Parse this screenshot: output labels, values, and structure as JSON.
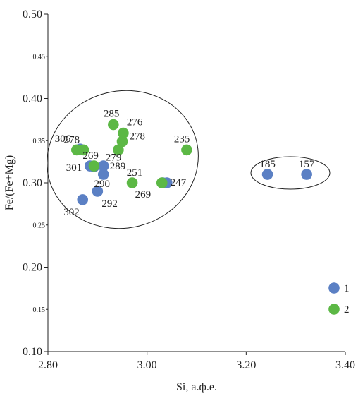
{
  "chart_data": {
    "type": "scatter",
    "xlabel": "Si, а.ф.е.",
    "ylabel": "Fe/(Fe+Mg)",
    "xlim": [
      2.8,
      3.4
    ],
    "ylim": [
      0.1,
      0.5
    ],
    "x_ticks": [
      "2.80",
      "3.00",
      "3.20",
      "3.40"
    ],
    "y_major_ticks": [
      "0.10",
      "0.20",
      "0.30",
      "0.40",
      "0.50"
    ],
    "y_minor_ticks": [
      "0.15",
      "0.25",
      "0.35",
      "0.45"
    ],
    "grid": false,
    "legend_position": "bottom-right",
    "series": [
      {
        "name": "1",
        "color": "#5b80c4",
        "points": [
          {
            "x": 2.865,
            "y": 0.34,
            "label": "306"
          },
          {
            "x": 2.885,
            "y": 0.32,
            "label": "301"
          },
          {
            "x": 2.893,
            "y": 0.319,
            "label": ""
          },
          {
            "x": 2.912,
            "y": 0.32,
            "label": "289"
          },
          {
            "x": 2.912,
            "y": 0.31,
            "label": "290"
          },
          {
            "x": 2.9,
            "y": 0.29,
            "label": "292"
          },
          {
            "x": 2.87,
            "y": 0.28,
            "label": "302"
          },
          {
            "x": 3.032,
            "y": 0.3,
            "label": ""
          },
          {
            "x": 3.04,
            "y": 0.3,
            "label": "247"
          },
          {
            "x": 3.243,
            "y": 0.31,
            "label": "185"
          },
          {
            "x": 3.322,
            "y": 0.31,
            "label": "157"
          }
        ]
      },
      {
        "name": "2",
        "color": "#5cb845",
        "points": [
          {
            "x": 2.858,
            "y": 0.339,
            "label": ""
          },
          {
            "x": 2.872,
            "y": 0.339,
            "label": "278"
          },
          {
            "x": 2.932,
            "y": 0.369,
            "label": "285"
          },
          {
            "x": 2.952,
            "y": 0.359,
            "label": "276"
          },
          {
            "x": 2.95,
            "y": 0.349,
            "label": "278"
          },
          {
            "x": 2.942,
            "y": 0.339,
            "label": "279"
          },
          {
            "x": 2.97,
            "y": 0.3,
            "label": "269"
          },
          {
            "x": 3.08,
            "y": 0.339,
            "label": "235"
          },
          {
            "x": 2.893,
            "y": 0.32,
            "label": "269"
          },
          {
            "x": 3.03,
            "y": 0.3,
            "label": "251"
          }
        ]
      }
    ]
  }
}
